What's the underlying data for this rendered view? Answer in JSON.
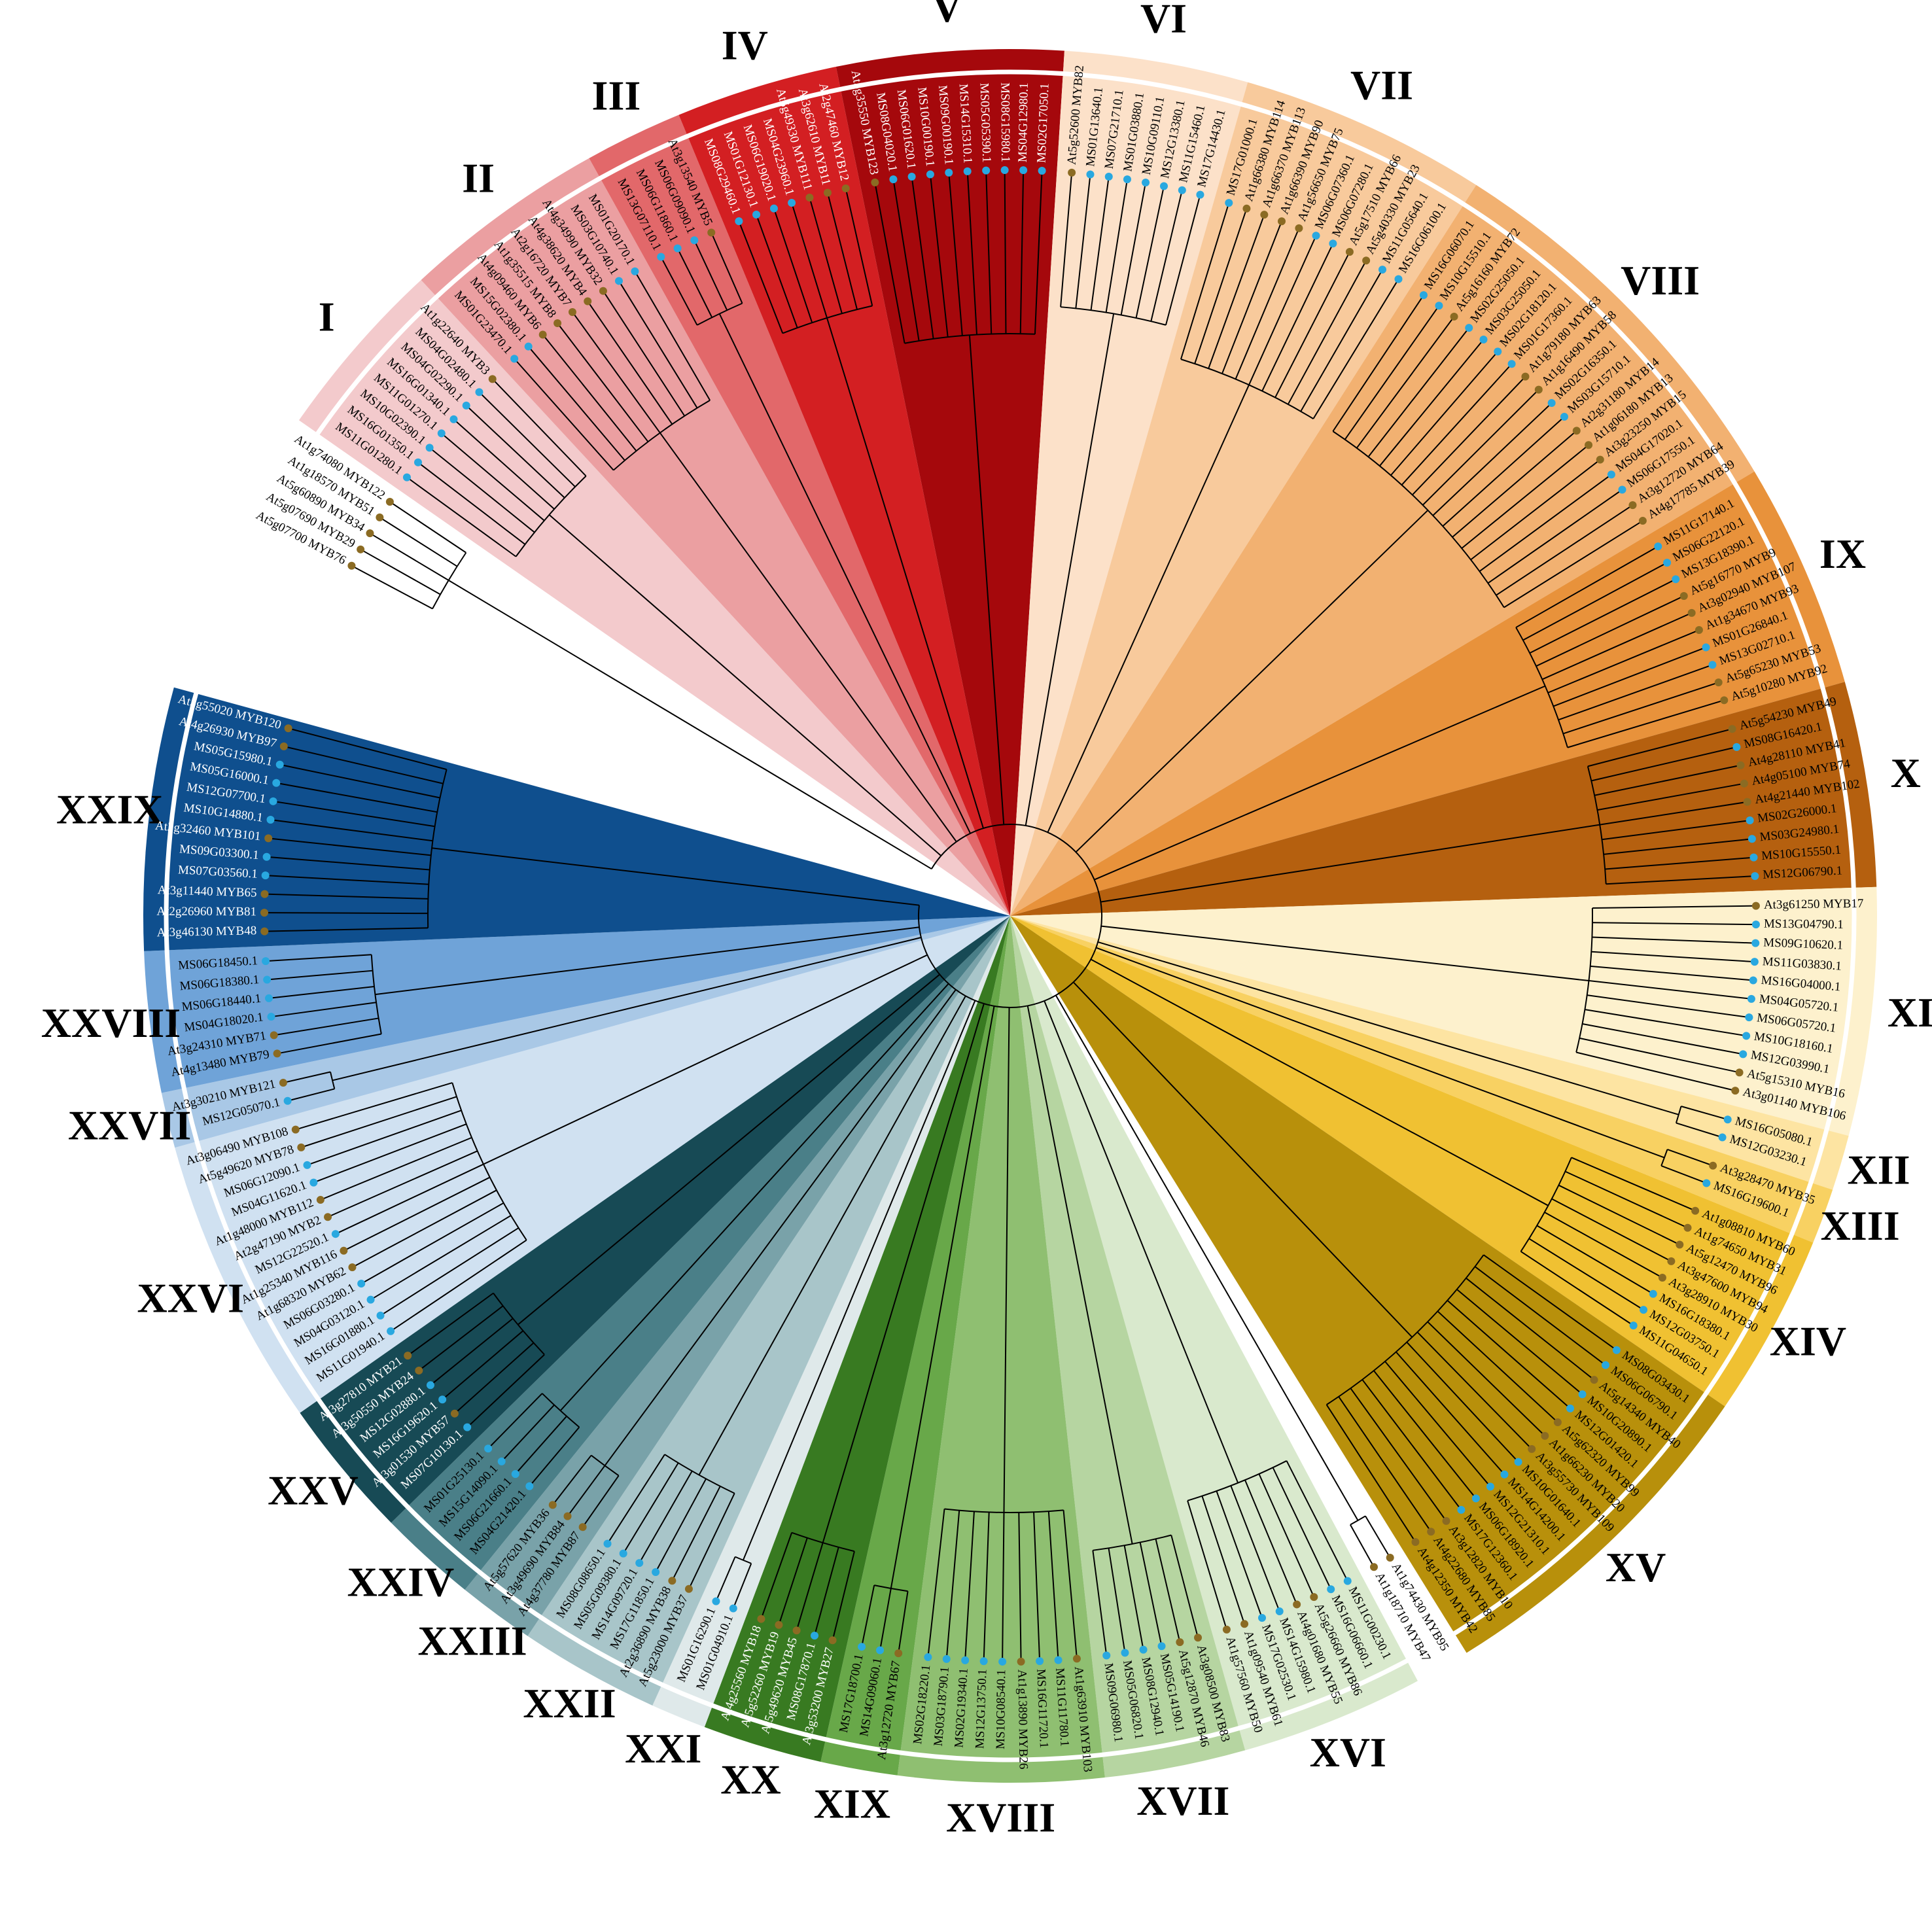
{
  "clades": [
    {
      "leaves": [
        "At5g07700 MYB76",
        "At5g07690 MYB29",
        "At5g60890 MYB34",
        "At1g18570 MYB51",
        "At1g74080 MYB122"
      ]
    },
    {
      "label": "I",
      "color": "#f3cacc",
      "leaves": [
        "MS11G01280.1",
        "MS16G01350.1",
        "MS10G02390.1",
        "MS11G01270.1",
        "MS16G01340.1",
        "MS04G02290.1",
        "MS04G02480.1",
        "At1g22640 MYB3"
      ]
    },
    {
      "label": "II",
      "color": "#eb9fa1",
      "leaves": [
        "MS01G23470.1",
        "MS15G02380.1",
        "At4g09460 MYB6",
        "At1g35515 MYB8",
        "At2g16720 MYB7",
        "At4g38620 MYB4",
        "At4g34990 MYB32",
        "MS03G10740.1",
        "MS01G20170.1"
      ]
    },
    {
      "label": "III",
      "color": "#e2686a",
      "leaves": [
        "MS13G07110.1",
        "MS06G11860.1",
        "MS06G09090.1",
        "At3g13540 MYB5"
      ]
    },
    {
      "label": "IV",
      "color": "#d31f22",
      "leaves": [
        "MS08G29460.1",
        "MS01G12130.1",
        "MS06G19020.1",
        "MS04G23960.1",
        "At5g49330 MYB111",
        "At3g62610 MYB11",
        "At2g47460 MYB12"
      ]
    },
    {
      "label": "V",
      "color": "#a5080c",
      "leaves": [
        "At5g35550 MYB123",
        "MS08G04020.1",
        "MS06G01620.1",
        "MS10G00190.1",
        "MS09G00190.1",
        "MS14G15310.1",
        "MS05G05390.1",
        "MS08G15980.1",
        "MS04G12980.1",
        "MS02G17050.1"
      ]
    },
    {
      "label": "VI",
      "color": "#fce1c9",
      "leaves": [
        "At5g52600 MYB82",
        "MS01G13640.1",
        "MS07G21710.1",
        "MS01G03880.1",
        "MS10G09110.1",
        "MS12G13380.1",
        "MS11G15460.1",
        "MS17G14430.1"
      ]
    },
    {
      "label": "VII",
      "color": "#f8ca9c",
      "leaves": [
        "MS17G01000.1",
        "At1g66380 MYB114",
        "At1g66370 MYB113",
        "At1g66390 MYB90",
        "At1g56650 MYB75",
        "MS06G07360.1",
        "MS06G07280.1",
        "At5g17510 MYB66",
        "At5g40330 MYB23",
        "MS11G05640.1",
        "MS16G06100.1"
      ]
    },
    {
      "label": "VIII",
      "color": "#f2b171",
      "leaves": [
        "MS16G06070.1",
        "MS10G15510.1",
        "At5g16160 MYB72",
        "MS02G25050.1",
        "MS03G25050.1",
        "MS02G18120.1",
        "MS01G17360.1",
        "At1g79180 MYB63",
        "At1g16490 MYB58",
        "MS02G16350.1",
        "MS03G15710.1",
        "At2g31180 MYB14",
        "At1g06180 MYB13",
        "At3g23250 MYB15",
        "MS04G17020.1",
        "MS06G17550.1",
        "At3g12720 MYB64",
        "At4g17785 MYB39"
      ]
    },
    {
      "label": "IX",
      "color": "#e8923b",
      "leaves": [
        "MS11G17140.1",
        "MS06G22120.1",
        "MS13G18390.1",
        "At5g16770 MYB9",
        "At3g02940 MYB107",
        "At1g34670 MYB93",
        "MS01G26840.1",
        "MS13G02710.1",
        "At5g65230 MYB53",
        "At5g10280 MYB92"
      ]
    },
    {
      "label": "X",
      "color": "#b5600f",
      "leaves": [
        "At5g54230 MYB49",
        "MS08G16420.1",
        "At4g28110 MYB41",
        "At4g05100 MYB74",
        "At4g21440 MYB102",
        "MS02G26000.1",
        "MS03G24980.1",
        "MS10G15550.1",
        "MS12G06790.1"
      ]
    },
    {
      "label": "XI",
      "color": "#fdf1cd",
      "leaves": [
        "At3g61250 MYB17",
        "MS13G04790.1",
        "MS09G10620.1",
        "MS11G03830.1",
        "MS16G04000.1",
        "MS04G05720.1",
        "MS06G05720.1",
        "MS10G18160.1",
        "MS12G03990.1",
        "At5g15310 MYB16",
        "At3g01140 MYB106"
      ]
    },
    {
      "label": "XII",
      "color": "#fde4a2",
      "leaves": [
        "MS16G05080.1",
        "MS12G03230.1"
      ]
    },
    {
      "label": "XIII",
      "color": "#f8d162",
      "leaves": [
        "At3g28470 MYB35",
        "MS16G19600.1"
      ]
    },
    {
      "label": "XIV",
      "color": "#f0c132",
      "leaves": [
        "At1g08810 MYB60",
        "At1g74650 MYB31",
        "At5g12470 MYB96",
        "At3g47600 MYB94",
        "At3g28910 MYB30",
        "MS16G18380.1",
        "MS12G03750.1",
        "MS11G04650.1"
      ]
    },
    {
      "label": "XV",
      "color": "#b8900b",
      "leaves": [
        "MS08G03430.1",
        "MS06G06790.1",
        "At5g14340 MYB40",
        "MS10G20890.1",
        "MS12G01420.1",
        "At5g62320 MYB99",
        "At1g66230 MYB20",
        "At3g55730 MYB109",
        "MS10G01640.1",
        "MS14G14200.1",
        "MS12G21310.1",
        "MS06G18920.1",
        "MS17G12360.1",
        "At3g12820 MYB10",
        "At4g22680 MYB85",
        "At4g12350 MYB42"
      ]
    },
    {
      "leaves": [
        "At1g74430 MYB95",
        "At1g18710 MYB47"
      ]
    },
    {
      "label": "XVI",
      "color": "#d9e9cd",
      "leaves": [
        "MS11G00230.1",
        "MS16G06660.1",
        "At5g26660 MYB86",
        "At4g01680 MYB55",
        "MS14G15980.1",
        "MS17G02530.1",
        "At1g09540 MYB61",
        "At1g57560 MYB50"
      ]
    },
    {
      "label": "XVII",
      "color": "#b6d5a1",
      "leaves": [
        "At3g08500 MYB83",
        "At5g12870 MYB46",
        "MS05G14190.1",
        "MS08G12940.1",
        "MS05G06820.1",
        "MS09G06980.1"
      ]
    },
    {
      "label": "XVIII",
      "color": "#8fbf71",
      "leaves": [
        "At1g63910 MYB103",
        "MS11G11780.1",
        "MS16G11720.1",
        "At1g13890 MYB26",
        "MS10G08540.1",
        "MS12G13750.1",
        "MS02G19340.1",
        "MS03G18790.1",
        "MS02G18220.1"
      ]
    },
    {
      "label": "XIX",
      "color": "#68a849",
      "leaves": [
        "At3g12720 MYB67",
        "MS14G09060.1",
        "MS17G18700.1"
      ]
    },
    {
      "label": "XX",
      "color": "#387a21",
      "leaves": [
        "At3g53200 MYB27",
        "MS08G17870.1",
        "At5g49620 MYB45",
        "At5g52260 MYB19",
        "At4g25560 MYB18"
      ]
    },
    {
      "label": "XXI",
      "color": "#dfe9ea",
      "leaves": [
        "MS01G04910.1",
        "MS01G16290.1"
      ]
    },
    {
      "label": "XXII",
      "color": "#a8c5c9",
      "leaves": [
        "At5g23000 MYB37",
        "At2g36890 MYB38",
        "MS17G11850.1",
        "MS14G09720.1",
        "MS05G09380.1",
        "MS08G08650.1"
      ]
    },
    {
      "label": "XXIII",
      "color": "#79a2a9",
      "leaves": [
        "At4g37780 MYB87",
        "At3g49690 MYB84",
        "At5g57620 MYB36"
      ]
    },
    {
      "label": "XXIV",
      "color": "#4a7f88",
      "leaves": [
        "MS04G21420.1",
        "MS06G21660.1",
        "MS15G14090.1",
        "MS01G25130.1"
      ]
    },
    {
      "label": "XXV",
      "color": "#174a55",
      "leaves": [
        "MS07G10130.1",
        "At3g01530 MYB57",
        "MS16G19620.1",
        "MS12G02880.1",
        "At3g50550 MYB24",
        "At3g27810 MYB21"
      ]
    },
    {
      "label": "XXVI",
      "color": "#d0e1f1",
      "leaves": [
        "MS11G01940.1",
        "MS16G01880.1",
        "MS04G03120.1",
        "MS06G03280.1",
        "At1g68320 MYB62",
        "At1g25340 MYB116",
        "MS12G22520.1",
        "At2g47190 MYB2",
        "At1g48000 MYB112",
        "MS04G11620.1",
        "MS06G12090.1",
        "At5g49620 MYB78",
        "At3g06490 MYB108"
      ]
    },
    {
      "label": "XXVII",
      "color": "#a9c8e6",
      "leaves": [
        "MS12G05070.1",
        "At3g30210 MYB121"
      ]
    },
    {
      "label": "XXVIII",
      "color": "#6fa3d8",
      "leaves": [
        "At4g13480 MYB79",
        "At3g24310 MYB71",
        "MS04G18020.1",
        "MS06G18440.1",
        "MS06G18380.1",
        "MS06G18450.1"
      ]
    },
    {
      "label": "XXIX",
      "color": "#0f4f8e",
      "leaves": [
        "At3g46130 MYB48",
        "At2g26960 MYB81",
        "At3g11440 MYB65",
        "MS07G03560.1",
        "MS09G03300.1",
        "At2g32460 MYB101",
        "MS10G14880.1",
        "MS12G07700.1",
        "MS05G16000.1",
        "MS05G15980.1",
        "At4g26930 MYB97",
        "At5g55020 MYB120"
      ]
    }
  ]
}
